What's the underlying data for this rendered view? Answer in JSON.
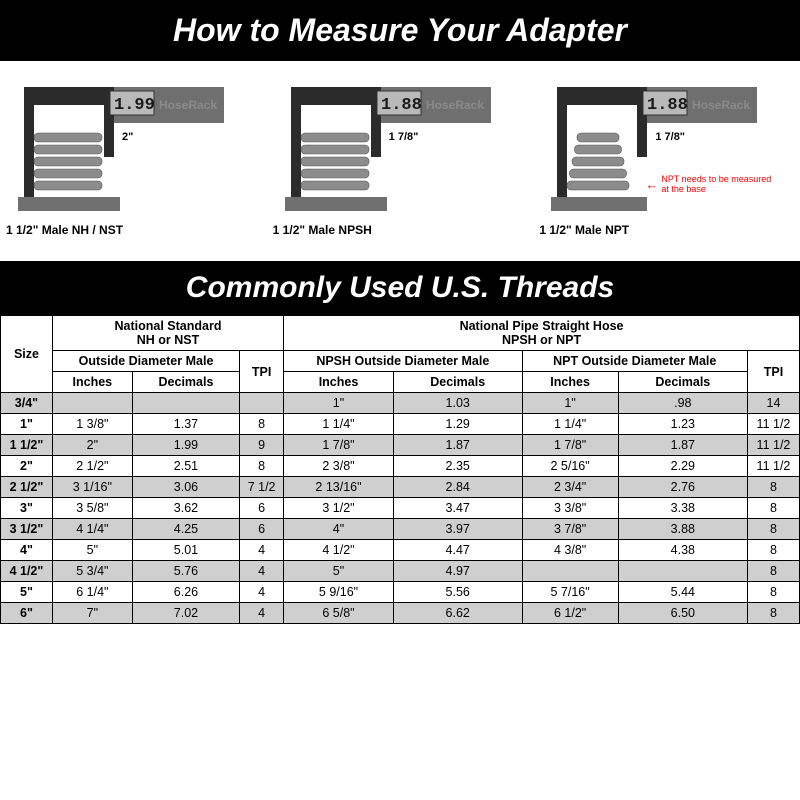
{
  "title1": "How to Measure Your Adapter",
  "title2": "Commonly Used U.S. Threads",
  "brand": "HoseRack",
  "calipers": [
    {
      "lcd": "1.99",
      "annot": "2\"",
      "label": "1 1/2\" Male NH / NST",
      "tapered": false,
      "note": ""
    },
    {
      "lcd": "1.88",
      "annot": "1 7/8\"",
      "label": "1 1/2\" Male NPSH",
      "tapered": false,
      "note": ""
    },
    {
      "lcd": "1.88",
      "annot": "1 7/8\"",
      "label": "1 1/2\" Male NPT",
      "tapered": true,
      "note": "NPT needs to be measured at the base"
    }
  ],
  "table": {
    "group1": {
      "title_l1": "National Standard",
      "title_l2": "NH or NST",
      "sub": "Outside Diameter Male"
    },
    "group2": {
      "title_l1": "National Pipe Straight Hose",
      "title_l2": "NPSH or NPT",
      "sub1": "NPSH Outside Diameter Male",
      "sub2": "NPT Outside Diameter Male"
    },
    "col_size": "Size",
    "col_inches": "Inches",
    "col_decimals": "Decimals",
    "col_tpi": "TPI",
    "rows": [
      {
        "size": "3/4\"",
        "nh_in": "",
        "nh_dec": "",
        "nh_tpi": "",
        "npsh_in": "1\"",
        "npsh_dec": "1.03",
        "npt_in": "1\"",
        "npt_dec": ".98",
        "np_tpi": "14",
        "shade": true
      },
      {
        "size": "1\"",
        "nh_in": "1 3/8\"",
        "nh_dec": "1.37",
        "nh_tpi": "8",
        "npsh_in": "1 1/4\"",
        "npsh_dec": "1.29",
        "npt_in": "1 1/4\"",
        "npt_dec": "1.23",
        "np_tpi": "11 1/2",
        "shade": false
      },
      {
        "size": "1 1/2\"",
        "nh_in": "2\"",
        "nh_dec": "1.99",
        "nh_tpi": "9",
        "npsh_in": "1 7/8\"",
        "npsh_dec": "1.87",
        "npt_in": "1 7/8\"",
        "npt_dec": "1.87",
        "np_tpi": "11 1/2",
        "shade": true
      },
      {
        "size": "2\"",
        "nh_in": "2 1/2\"",
        "nh_dec": "2.51",
        "nh_tpi": "8",
        "npsh_in": "2 3/8\"",
        "npsh_dec": "2.35",
        "npt_in": "2 5/16\"",
        "npt_dec": "2.29",
        "np_tpi": "11 1/2",
        "shade": false
      },
      {
        "size": "2 1/2\"",
        "nh_in": "3 1/16\"",
        "nh_dec": "3.06",
        "nh_tpi": "7 1/2",
        "npsh_in": "2 13/16\"",
        "npsh_dec": "2.84",
        "npt_in": "2 3/4\"",
        "npt_dec": "2.76",
        "np_tpi": "8",
        "shade": true
      },
      {
        "size": "3\"",
        "nh_in": "3 5/8\"",
        "nh_dec": "3.62",
        "nh_tpi": "6",
        "npsh_in": "3 1/2\"",
        "npsh_dec": "3.47",
        "npt_in": "3 3/8\"",
        "npt_dec": "3.38",
        "np_tpi": "8",
        "shade": false
      },
      {
        "size": "3 1/2\"",
        "nh_in": "4 1/4\"",
        "nh_dec": "4.25",
        "nh_tpi": "6",
        "npsh_in": "4\"",
        "npsh_dec": "3.97",
        "npt_in": "3 7/8\"",
        "npt_dec": "3.88",
        "np_tpi": "8",
        "shade": true
      },
      {
        "size": "4\"",
        "nh_in": "5\"",
        "nh_dec": "5.01",
        "nh_tpi": "4",
        "npsh_in": "4 1/2\"",
        "npsh_dec": "4.47",
        "npt_in": "4 3/8\"",
        "npt_dec": "4.38",
        "np_tpi": "8",
        "shade": false
      },
      {
        "size": "4 1/2\"",
        "nh_in": "5 3/4\"",
        "nh_dec": "5.76",
        "nh_tpi": "4",
        "npsh_in": "5\"",
        "npsh_dec": "4.97",
        "npt_in": "",
        "npt_dec": "",
        "np_tpi": "8",
        "shade": true
      },
      {
        "size": "5\"",
        "nh_in": "6 1/4\"",
        "nh_dec": "6.26",
        "nh_tpi": "4",
        "npsh_in": "5 9/16\"",
        "npsh_dec": "5.56",
        "npt_in": "5 7/16\"",
        "npt_dec": "5.44",
        "np_tpi": "8",
        "shade": false
      },
      {
        "size": "6\"",
        "nh_in": "7\"",
        "nh_dec": "7.02",
        "nh_tpi": "4",
        "npsh_in": "6 5/8\"",
        "npsh_dec": "6.62",
        "npt_in": "6 1/2\"",
        "npt_dec": "6.50",
        "np_tpi": "8",
        "shade": true
      }
    ]
  },
  "colors": {
    "header_bg": "#000000",
    "header_fg": "#ffffff",
    "shade": "#cfcfcf",
    "caliper_dark": "#2b2b2b",
    "caliper_mid": "#6f6f6f",
    "lcd_bg": "#b9b9b9",
    "thread_fill": "#8c8c8c",
    "base_fill": "#707070",
    "note_color": "#ff0000"
  }
}
